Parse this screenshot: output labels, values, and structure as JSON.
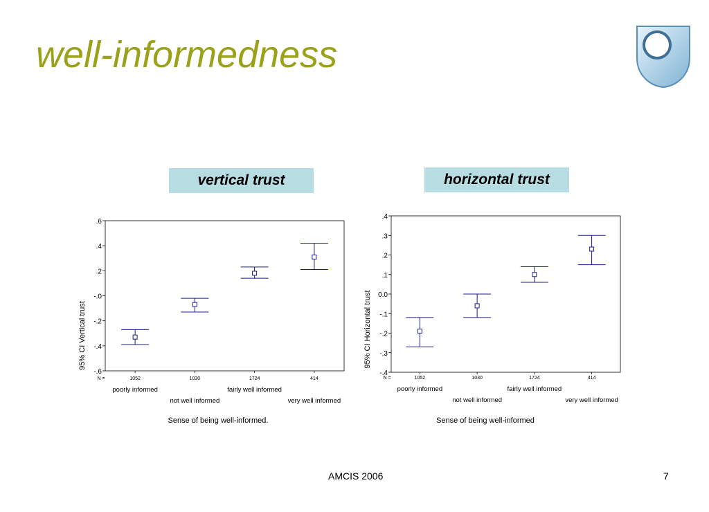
{
  "slide": {
    "title": "well-informedness",
    "footer_center": "AMCIS 2006",
    "page_number": "7",
    "accent_color": "#9aa21a",
    "panel_label_bg": "#b7dde3",
    "logo_icon": "university-shield-logo"
  },
  "chart_data": [
    {
      "type": "errorbar",
      "panel_label": "vertical trust",
      "ylabel": "95% CI Vertical trust",
      "xlabel": "Sense of being well-informed.",
      "ylim": [
        -0.6,
        0.6
      ],
      "yticks": [
        0.6,
        0.4,
        0.2,
        0.0,
        -0.2,
        -0.4,
        -0.6
      ],
      "ytick_labels": [
        ".6",
        ".4",
        ".2",
        "-.0",
        "-.2",
        "-.4",
        "-.6"
      ],
      "n_label": "N =",
      "categories": [
        "poorly informed",
        "not well informed",
        "fairly well informed",
        "very well informed"
      ],
      "n": [
        "1052",
        "1030",
        "1724",
        "414"
      ],
      "mean": [
        -0.33,
        -0.07,
        0.18,
        0.31
      ],
      "lower": [
        -0.39,
        -0.13,
        0.14,
        0.21
      ],
      "upper": [
        -0.27,
        -0.02,
        0.23,
        0.42
      ],
      "color": "#1a1a8c"
    },
    {
      "type": "errorbar",
      "panel_label": "horizontal trust",
      "ylabel": "95% CI Horizontal trust",
      "xlabel": "Sense of being well-informed",
      "ylim": [
        -0.4,
        0.4
      ],
      "yticks": [
        0.4,
        0.3,
        0.2,
        0.1,
        0.0,
        -0.1,
        -0.2,
        -0.3,
        -0.4
      ],
      "ytick_labels": [
        ".4",
        ".3",
        ".2",
        ".1",
        "0.0",
        "-.1",
        "-.2",
        "-.3",
        "-.4"
      ],
      "n_label": "N =",
      "categories": [
        "poorly informed",
        "not well informed",
        "fairly well informed",
        "very well informed"
      ],
      "n": [
        "1052",
        "1030",
        "1724",
        "414"
      ],
      "mean": [
        -0.19,
        -0.06,
        0.1,
        0.23
      ],
      "lower": [
        -0.27,
        -0.12,
        0.06,
        0.15
      ],
      "upper": [
        -0.12,
        0.0,
        0.14,
        0.3
      ],
      "color": "#1a1a8c"
    }
  ]
}
